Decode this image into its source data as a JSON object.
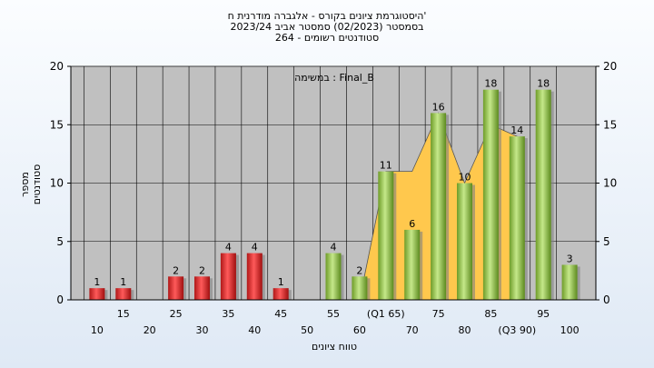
{
  "title": {
    "line1": "היסטוגרמת ציונים בקורס - אלגברה מודרנית ח'",
    "line2": "בסמסטר  (02/2023)  סמסטר אביב 2023/24",
    "line3": "סטודנטים רשומים - 264"
  },
  "chart_data": {
    "type": "bar",
    "annotation": "במשימה : Final_B",
    "xlabel": "טווח ציונים",
    "ylabel": "מספר סטודנטים",
    "ylim": [
      0,
      20
    ],
    "yticks": [
      0,
      5,
      10,
      15,
      20
    ],
    "grid": true,
    "x_tick_labels_row1": [
      "15",
      "25",
      "35",
      "45",
      "55",
      "(Q1 65)",
      "75",
      "85",
      "95"
    ],
    "x_tick_labels_row2": [
      "10",
      "20",
      "30",
      "40",
      "50",
      "60",
      "70",
      "80",
      "(Q3 90)",
      "100"
    ],
    "categories": [
      "10",
      "15",
      "20",
      "25",
      "30",
      "35",
      "40",
      "45",
      "50",
      "55",
      "60",
      "65",
      "70",
      "75",
      "80",
      "85",
      "90",
      "95",
      "100"
    ],
    "values": [
      1,
      1,
      0,
      2,
      2,
      4,
      4,
      1,
      0,
      4,
      2,
      11,
      6,
      16,
      10,
      18,
      14,
      18,
      3
    ],
    "value_labels": [
      "1",
      "1",
      "",
      "2",
      "2",
      "4",
      "4",
      "1",
      "",
      "4",
      "2",
      "11",
      "6",
      "16",
      "10",
      "18",
      "14",
      "18",
      "3"
    ],
    "bar_colors": {
      "fail": "#e53a3a",
      "pass": "#8cc63f"
    },
    "pass_from_category": "55",
    "area": {
      "color": "#ffc84d",
      "categories_start": "60",
      "categories_end": "90",
      "values": [
        0,
        11,
        11,
        16,
        10,
        15,
        14
      ]
    }
  }
}
